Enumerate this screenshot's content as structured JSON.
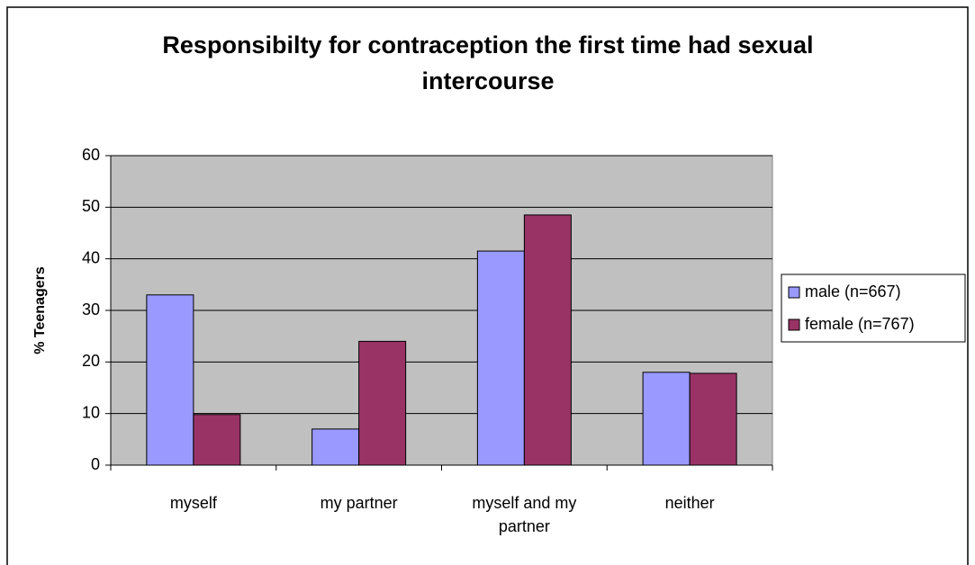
{
  "chart_data": {
    "type": "bar",
    "title": "Responsibilty for contraception the first time had sexual intercourse",
    "y_label": "% Teenagers",
    "categories": [
      "myself",
      "my partner",
      "myself and my partner",
      "neither"
    ],
    "series": [
      {
        "name": "male (n=667)",
        "color": "#9999ff",
        "values": [
          33,
          7,
          41.5,
          18
        ]
      },
      {
        "name": "female (n=767)",
        "color": "#993366",
        "values": [
          9.8,
          24,
          48.5,
          17.8
        ]
      }
    ],
    "ylim": [
      0,
      60
    ],
    "yticks": [
      0,
      10,
      20,
      30,
      40,
      50,
      60
    ],
    "grid": true,
    "legend": "right",
    "plot_background": "#c0c0c0"
  }
}
